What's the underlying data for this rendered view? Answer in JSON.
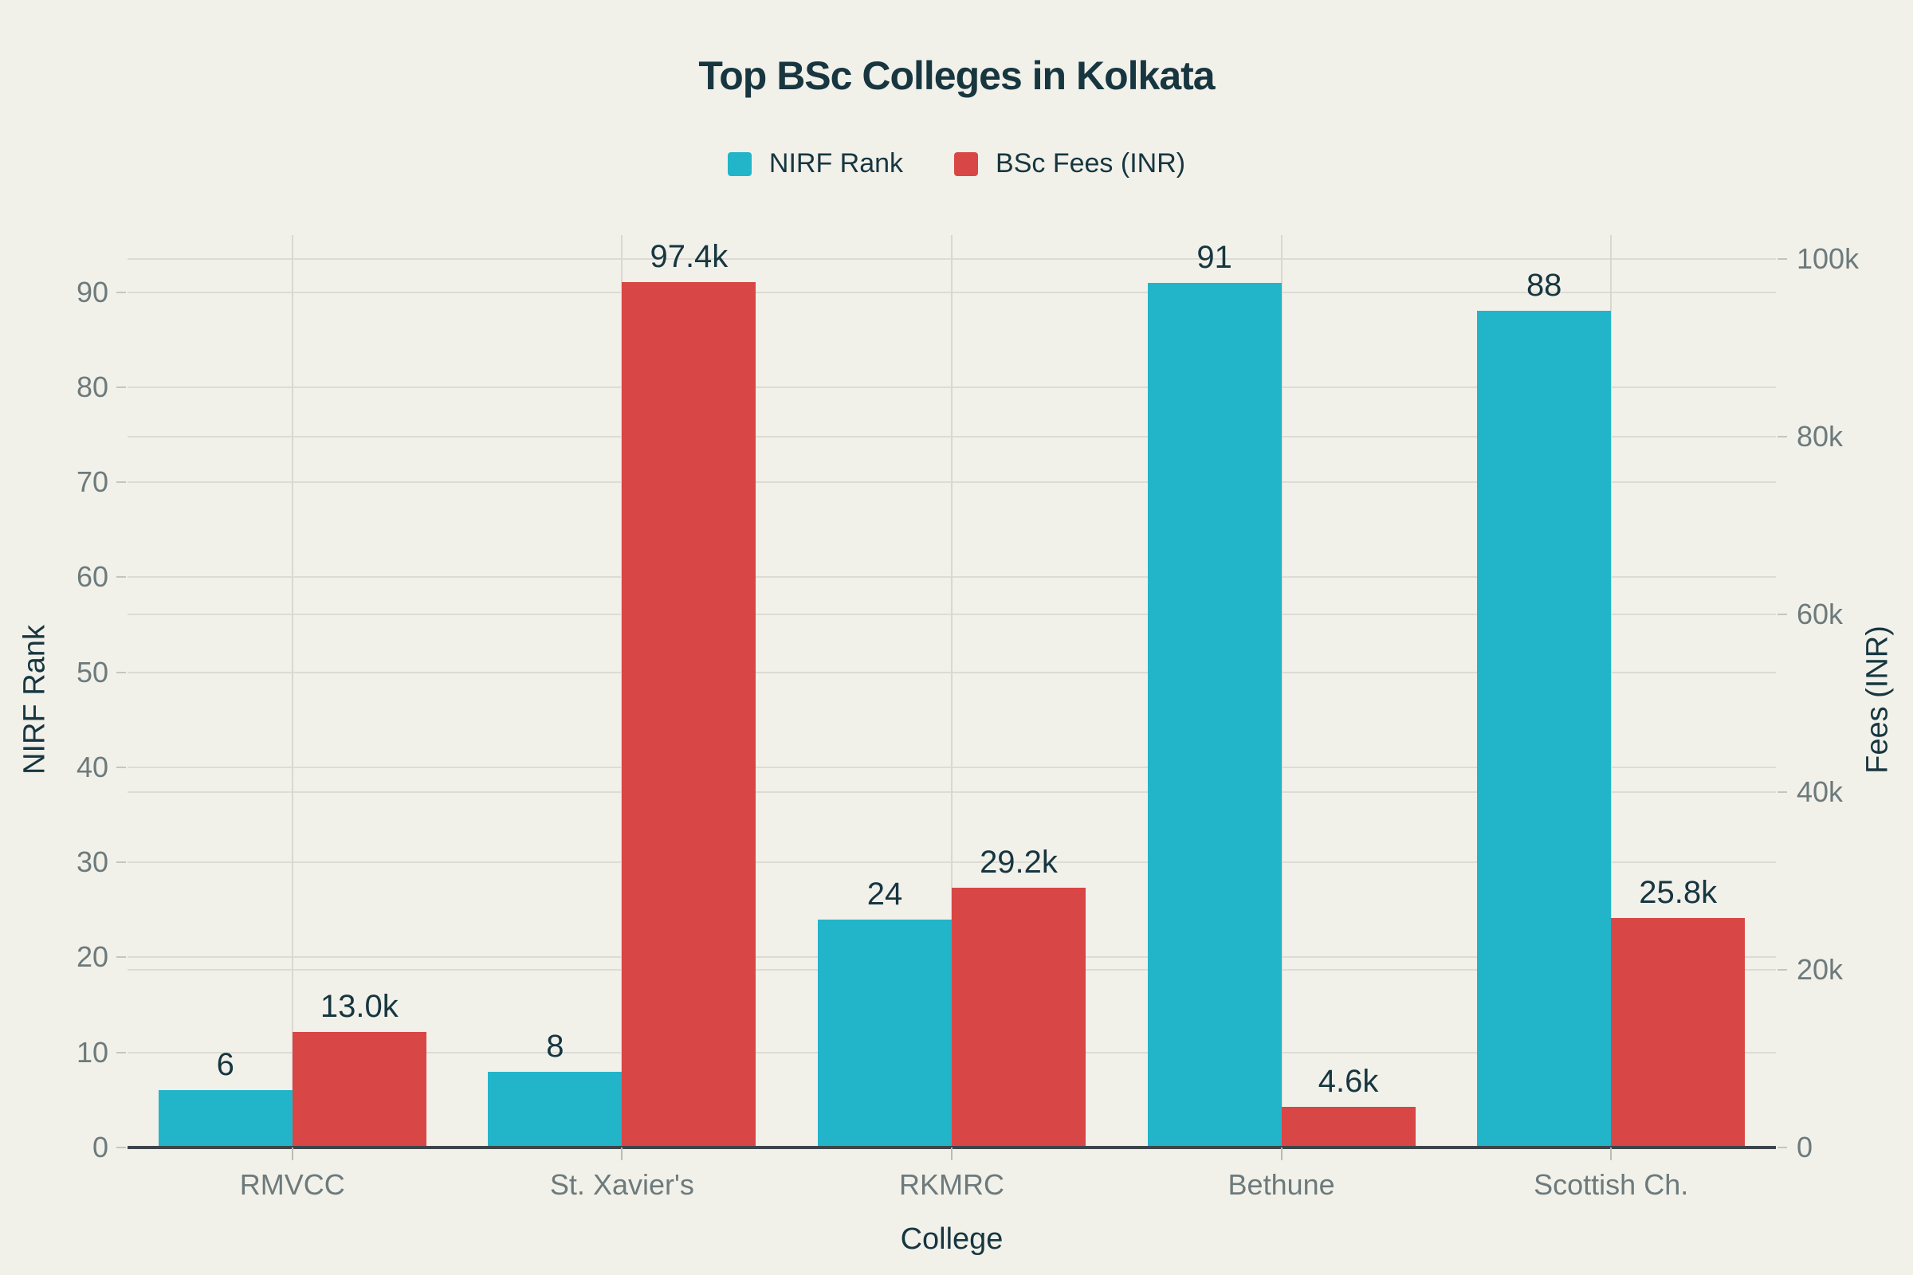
{
  "title": "Top BSc Colleges in Kolkata",
  "colors": {
    "background": "#f1f1ea",
    "nirf_bar": "#22b4c9",
    "fees_bar": "#d94646",
    "dark_text": "#173640",
    "muted_text": "#6d7a7c",
    "gridline": "#dcdcd4",
    "axis_line": "#3e4549"
  },
  "chart_data": {
    "type": "bar",
    "title": "Top BSc Colleges in Kolkata",
    "categories": [
      "RMVCC",
      "St. Xavier's",
      "RKMRC",
      "Bethune",
      "Scottish Ch."
    ],
    "series": [
      {
        "name": "NIRF Rank",
        "axis": "left",
        "color": "#22b4c9",
        "values": [
          6,
          8,
          24,
          91,
          88
        ],
        "data_labels": [
          "6",
          "8",
          "24",
          "91",
          "88"
        ]
      },
      {
        "name": "BSc Fees (INR)",
        "axis": "right",
        "color": "#d94646",
        "values": [
          13000,
          97400,
          29200,
          4600,
          25800
        ],
        "data_labels": [
          "13.0k",
          "97.4k",
          "29.2k",
          "4.6k",
          "25.8k"
        ]
      }
    ],
    "xlabel": "College",
    "ylabel_left": "NIRF Rank",
    "ylabel_right": "Fees (INR)",
    "left_axis": {
      "ticks": [
        0,
        10,
        20,
        30,
        40,
        50,
        60,
        70,
        80,
        90
      ],
      "tick_labels": [
        "0",
        "10",
        "20",
        "30",
        "40",
        "50",
        "60",
        "70",
        "80",
        "90"
      ],
      "range": [
        0,
        96
      ]
    },
    "right_axis": {
      "tick_values": [
        0,
        20000,
        40000,
        60000,
        80000,
        100000
      ],
      "tick_labels": [
        "0",
        "20k",
        "40k",
        "60k",
        "80k",
        "100k"
      ],
      "range": [
        0,
        102700
      ]
    },
    "legend_position": "top",
    "grid": true
  }
}
